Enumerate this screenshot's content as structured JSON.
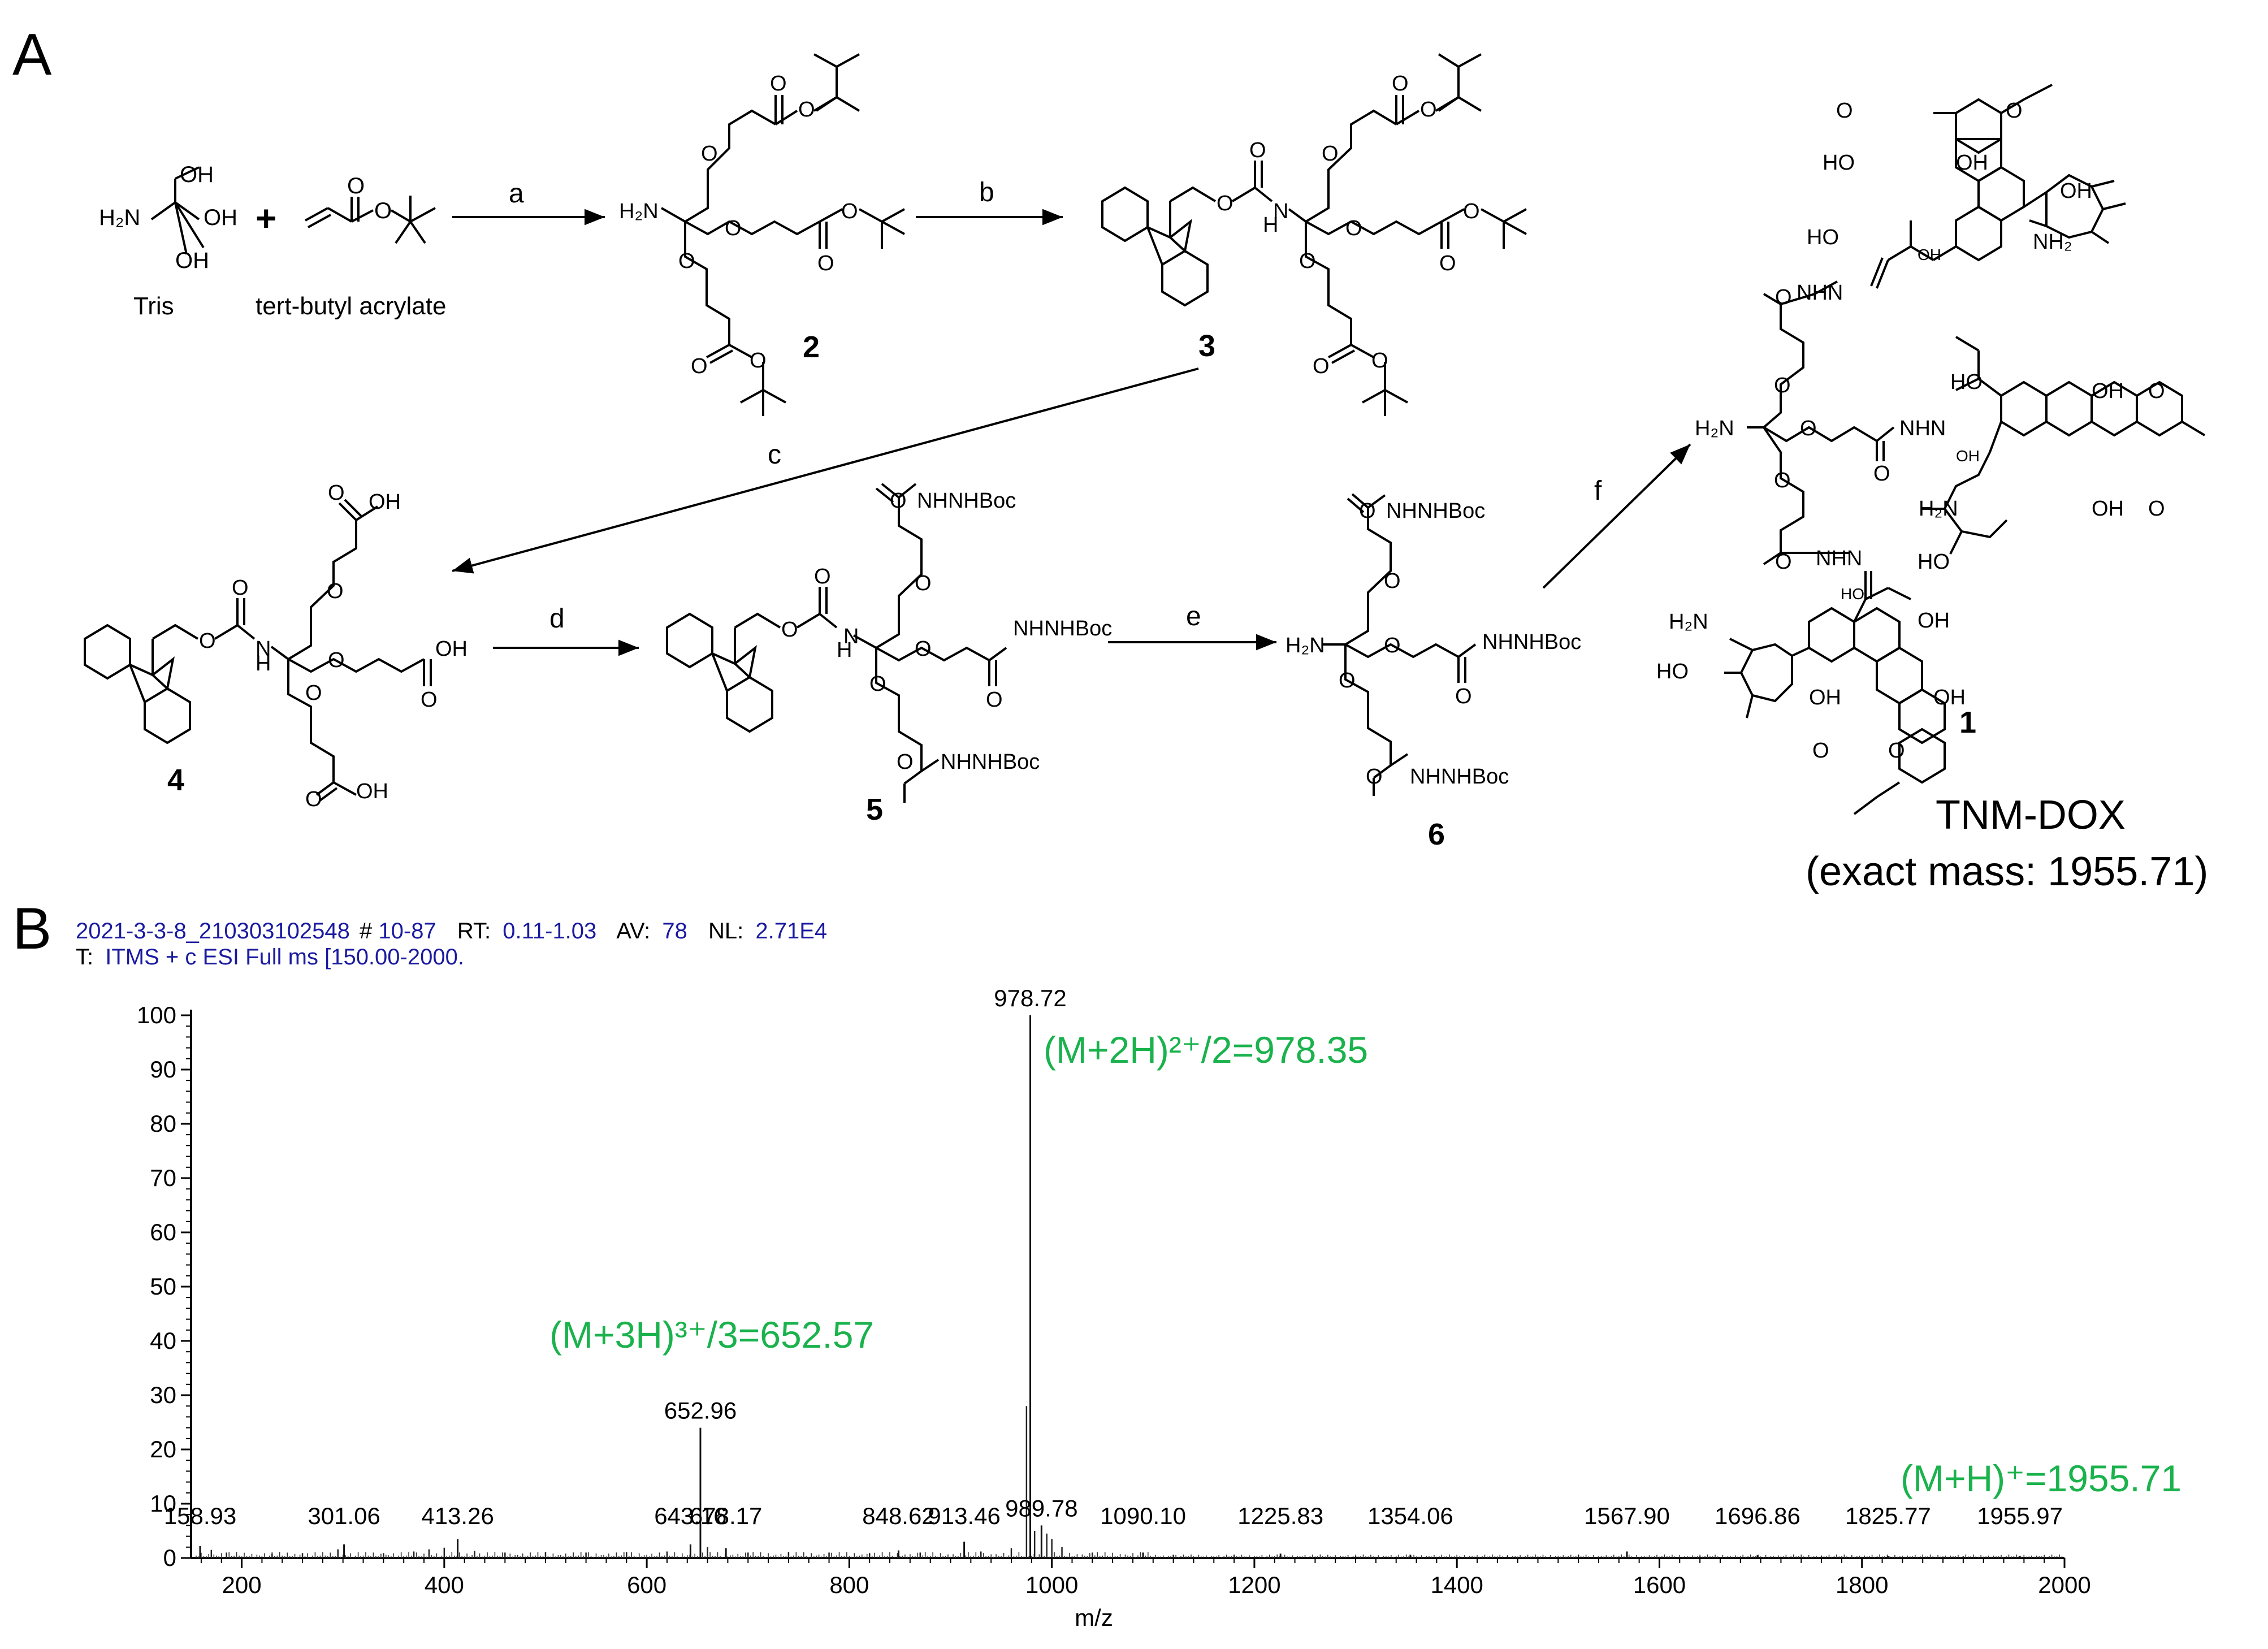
{
  "panel_a": {
    "label": "A",
    "reagents": {
      "tris_name": "Tris",
      "acrylate_name": "tert-butyl acrylate",
      "plus": "+",
      "oh": "OH",
      "h2n": "H₂N",
      "o": "O"
    },
    "steps": [
      "a",
      "b",
      "c",
      "d",
      "e",
      "f"
    ],
    "compounds": {
      "c2": "2",
      "c3": "3",
      "c4": "4",
      "c5": "5",
      "c6": "6",
      "c1": "1"
    },
    "groups": {
      "nh": "N\nH",
      "nhnhboc": "NHNHBoc",
      "oh": "OH",
      "nh2": "NH₂",
      "h2n": "H₂N",
      "ho": "HO",
      "nhn": "NHN",
      "nnh": "NHN",
      "o": "O"
    },
    "product_name": "TNM-DOX",
    "product_mass": "(exact mass: 1955.71)"
  },
  "panel_b": {
    "label": "B",
    "header": {
      "file": "2021-3-3-8_210303102548",
      "scan_hash": "#",
      "scan_range": "10-87",
      "rt_label": "RT:",
      "rt_value": "0.11-1.03",
      "av_label": "AV:",
      "av_value": "78",
      "nl_label": "NL:",
      "nl_value": "2.71E4",
      "t_label": "T:",
      "t_value": "ITMS + c ESI Full ms [150.00-2000."
    },
    "annotations": {
      "m2h": "(M+2H)²⁺/2=978.35",
      "m3h": "(M+3H)³⁺/3=652.57",
      "mh": "(M+H)⁺=1955.71"
    },
    "colors": {
      "annotation": "#1ab24c",
      "header": "#1a1aa0",
      "axis": "#000000"
    }
  },
  "chart_data": {
    "type": "bar",
    "xlabel": "m/z",
    "ylabel": "",
    "xlim": [
      150,
      2000
    ],
    "ylim": [
      0,
      100
    ],
    "xticks": [
      200,
      400,
      600,
      800,
      1000,
      1200,
      1400,
      1600,
      1800,
      2000
    ],
    "yticks": [
      0,
      10,
      20,
      30,
      40,
      50,
      60,
      70,
      80,
      90,
      100
    ],
    "peaks": [
      {
        "mz": 978.72,
        "intensity": 100,
        "label": "978.72"
      },
      {
        "mz": 652.96,
        "intensity": 24,
        "label": "652.96"
      },
      {
        "mz": 989.78,
        "intensity": 6,
        "label": "989.78"
      },
      {
        "mz": 413.26,
        "intensity": 3.5,
        "label": "413.26"
      },
      {
        "mz": 301.06,
        "intensity": 2.5,
        "label": "301.06"
      },
      {
        "mz": 158.93,
        "intensity": 2.2,
        "label": "158.93"
      },
      {
        "mz": 643.16,
        "intensity": 2.5,
        "label": "643.16"
      },
      {
        "mz": 678.17,
        "intensity": 1.8,
        "label": "678.17"
      },
      {
        "mz": 848.62,
        "intensity": 1.4,
        "label": "848.62"
      },
      {
        "mz": 913.46,
        "intensity": 3.0,
        "label": "913.46"
      },
      {
        "mz": 1090.1,
        "intensity": 1.0,
        "label": "1090.10"
      },
      {
        "mz": 1225.83,
        "intensity": 0.8,
        "label": "1225.83"
      },
      {
        "mz": 1354.06,
        "intensity": 0.6,
        "label": "1354.06"
      },
      {
        "mz": 1567.9,
        "intensity": 1.2,
        "label": "1567.90"
      },
      {
        "mz": 1696.86,
        "intensity": 0.5,
        "label": "1696.86"
      },
      {
        "mz": 1825.77,
        "intensity": 0.4,
        "label": "1825.77"
      },
      {
        "mz": 1955.97,
        "intensity": 0.4,
        "label": "1955.97"
      }
    ],
    "minor_peaks": [
      {
        "mz": 170,
        "intensity": 1.5
      },
      {
        "mz": 185,
        "intensity": 1.0
      },
      {
        "mz": 230,
        "intensity": 0.8
      },
      {
        "mz": 260,
        "intensity": 0.9
      },
      {
        "mz": 295,
        "intensity": 1.6
      },
      {
        "mz": 340,
        "intensity": 0.9
      },
      {
        "mz": 370,
        "intensity": 1.2
      },
      {
        "mz": 385,
        "intensity": 1.6
      },
      {
        "mz": 400,
        "intensity": 1.9
      },
      {
        "mz": 430,
        "intensity": 1.3
      },
      {
        "mz": 460,
        "intensity": 1.0
      },
      {
        "mz": 500,
        "intensity": 1.1
      },
      {
        "mz": 540,
        "intensity": 1.0
      },
      {
        "mz": 580,
        "intensity": 1.1
      },
      {
        "mz": 620,
        "intensity": 1.2
      },
      {
        "mz": 660,
        "intensity": 2.0
      },
      {
        "mz": 700,
        "intensity": 1.0
      },
      {
        "mz": 740,
        "intensity": 1.1
      },
      {
        "mz": 780,
        "intensity": 1.0
      },
      {
        "mz": 820,
        "intensity": 0.9
      },
      {
        "mz": 870,
        "intensity": 1.0
      },
      {
        "mz": 930,
        "intensity": 1.2
      },
      {
        "mz": 960,
        "intensity": 1.8
      },
      {
        "mz": 975,
        "intensity": 28
      },
      {
        "mz": 983,
        "intensity": 5
      },
      {
        "mz": 995,
        "intensity": 4.5
      },
      {
        "mz": 1000,
        "intensity": 3.5
      },
      {
        "mz": 1010,
        "intensity": 2.0
      },
      {
        "mz": 1040,
        "intensity": 1.0
      },
      {
        "mz": 1120,
        "intensity": 0.6
      },
      {
        "mz": 1180,
        "intensity": 0.5
      },
      {
        "mz": 1300,
        "intensity": 0.4
      },
      {
        "mz": 1450,
        "intensity": 0.4
      },
      {
        "mz": 1520,
        "intensity": 0.5
      },
      {
        "mz": 1640,
        "intensity": 0.3
      },
      {
        "mz": 1760,
        "intensity": 0.3
      },
      {
        "mz": 1900,
        "intensity": 0.3
      }
    ]
  }
}
